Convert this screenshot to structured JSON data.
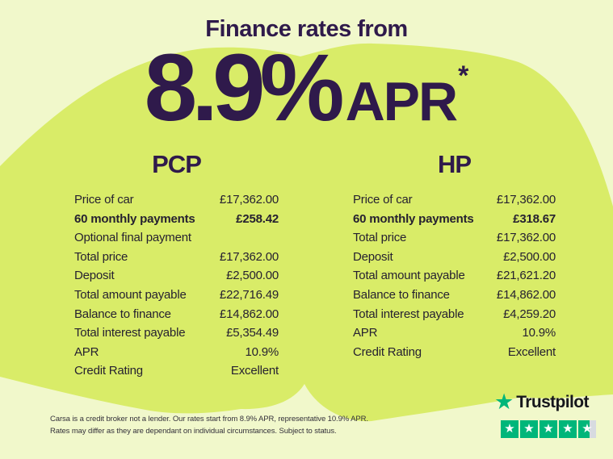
{
  "header": {
    "title": "Finance rates from",
    "rate": "8.9%",
    "apr_label": "APR",
    "asterisk": "*"
  },
  "columns": [
    {
      "id": "pcp",
      "title": "PCP",
      "rows": [
        {
          "label": "Price of car",
          "value": "£17,362.00",
          "bold": false
        },
        {
          "label": "60 monthly payments",
          "value": "£258.42",
          "bold": true
        },
        {
          "label": "Optional final payment",
          "value": "",
          "bold": false
        },
        {
          "label": "Total price",
          "value": "£17,362.00",
          "bold": false
        },
        {
          "label": "Deposit",
          "value": "£2,500.00",
          "bold": false
        },
        {
          "label": "Total amount payable",
          "value": "£22,716.49",
          "bold": false
        },
        {
          "label": "Balance to finance",
          "value": "£14,862.00",
          "bold": false
        },
        {
          "label": "Total interest payable",
          "value": "£5,354.49",
          "bold": false
        },
        {
          "label": "APR",
          "value": "10.9%",
          "bold": false
        },
        {
          "label": "Credit Rating",
          "value": "Excellent",
          "bold": false
        }
      ]
    },
    {
      "id": "hp",
      "title": "HP",
      "rows": [
        {
          "label": "Price of car",
          "value": "£17,362.00",
          "bold": false
        },
        {
          "label": "60 monthly payments",
          "value": "£318.67",
          "bold": true
        },
        {
          "label": "Total price",
          "value": "£17,362.00",
          "bold": false
        },
        {
          "label": "Deposit",
          "value": "£2,500.00",
          "bold": false
        },
        {
          "label": "Total amount payable",
          "value": "£21,621.20",
          "bold": false
        },
        {
          "label": "Balance to finance",
          "value": "£14,862.00",
          "bold": false
        },
        {
          "label": "Total interest payable",
          "value": "£4,259.20",
          "bold": false
        },
        {
          "label": "APR",
          "value": "10.9%",
          "bold": false
        },
        {
          "label": "Credit Rating",
          "value": "Excellent",
          "bold": false
        }
      ]
    }
  ],
  "disclaimer": {
    "line1": "Carsa is a credit broker not a lender. Our rates start from 8.9% APR, representative 10.9% APR.",
    "line2": "Rates may differ as they are dependant on individual circumstances. Subject to status."
  },
  "trustpilot": {
    "brand": "Trustpilot",
    "star_char": "★",
    "fill_percents": [
      100,
      100,
      100,
      100,
      64
    ]
  },
  "colors": {
    "background_pale": "#f1f8cb",
    "blob_green": "#d9ec68",
    "brand_purple": "#2f1a4b",
    "table_text": "#262130",
    "trustpilot_green": "#00b67a",
    "trustpilot_star_empty": "#d7dbe0"
  }
}
